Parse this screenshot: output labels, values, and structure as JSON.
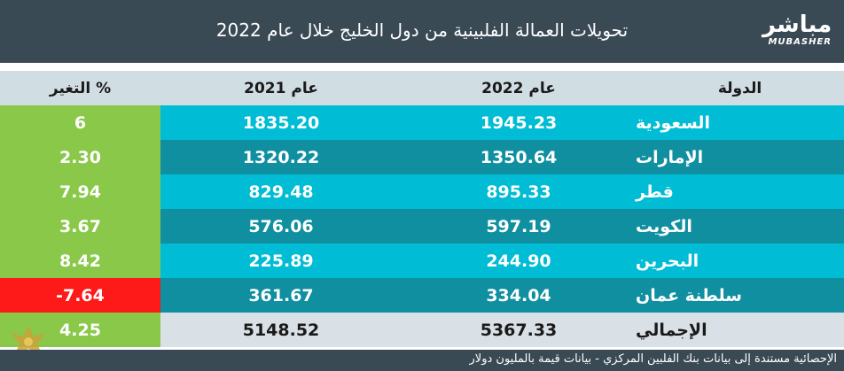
{
  "title": "تحويلات العمالة الفلبينية من دول الخليج خلال عام 2022",
  "logo": {
    "arabic": "مباشر",
    "english": "MUBASHER"
  },
  "footer": {
    "source": "الإحصائية مستندة إلى بيانات بنك الفلبين المركزي - بيانات قيمة بالمليون دولار"
  },
  "colors": {
    "header": "#3a4a55",
    "row_light": "#00bcd4",
    "row_dark": "#0f8fa0",
    "positive": "#8ac84a",
    "negative": "#ff1a1a"
  },
  "chart_data": {
    "type": "table",
    "columns": [
      "الدولة",
      "عام 2022",
      "عام 2021",
      "التغير %"
    ],
    "rows": [
      {
        "country": "السعودية",
        "y2022": "1945.23",
        "y2021": "1835.20",
        "change": "6"
      },
      {
        "country": "الإمارات",
        "y2022": "1350.64",
        "y2021": "1320.22",
        "change": "2.30"
      },
      {
        "country": "قطر",
        "y2022": "895.33",
        "y2021": "829.48",
        "change": "7.94"
      },
      {
        "country": "الكويت",
        "y2022": "597.19",
        "y2021": "576.06",
        "change": "3.67"
      },
      {
        "country": "البحرين",
        "y2022": "244.90",
        "y2021": "225.89",
        "change": "8.42"
      },
      {
        "country": "سلطنة عمان",
        "y2022": "334.04",
        "y2021": "361.67",
        "change": "-7.64"
      }
    ],
    "total": {
      "country": "الإجمالي",
      "y2022": "5367.33",
      "y2021": "5148.52",
      "change": "4.25"
    }
  }
}
